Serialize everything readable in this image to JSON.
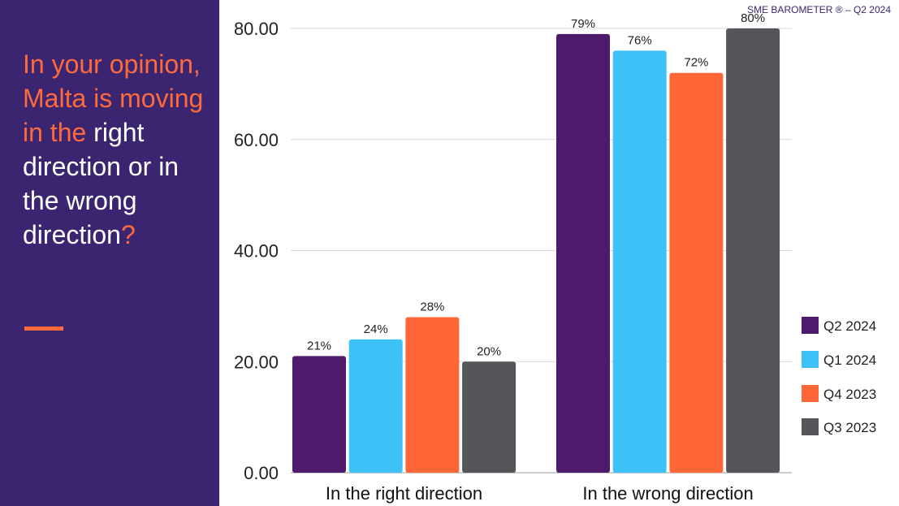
{
  "header": {
    "source_label": "SME BAROMETER ® – Q2 2024"
  },
  "question": {
    "part1": "In your opinion, Malta is moving in the",
    "part2": " right direction or in the wrong direction",
    "part3": "?"
  },
  "colors": {
    "panel": "#3b2570",
    "accent": "#ff6a3d"
  },
  "chart_data": {
    "type": "bar",
    "categories": [
      "In the right direction",
      "In the wrong direction"
    ],
    "series": [
      {
        "name": "Q2 2024",
        "color": "#4f1a6b",
        "values": [
          21,
          79
        ],
        "labels": [
          "21%",
          "79%"
        ]
      },
      {
        "name": "Q1 2024",
        "color": "#3ec1f7",
        "values": [
          24,
          76
        ],
        "labels": [
          "24%",
          "76%"
        ]
      },
      {
        "name": "Q4 2023",
        "color": "#ff6637",
        "values": [
          28,
          72
        ],
        "labels": [
          "28%",
          "72%"
        ]
      },
      {
        "name": "Q3 2023",
        "color": "#555659",
        "values": [
          20,
          80
        ],
        "labels": [
          "20%",
          "80%"
        ]
      }
    ],
    "yticks": [
      "0.00",
      "20.00",
      "40.00",
      "60.00",
      "80.00"
    ],
    "ylim": [
      0,
      80
    ],
    "grid": true,
    "legend": "right"
  }
}
